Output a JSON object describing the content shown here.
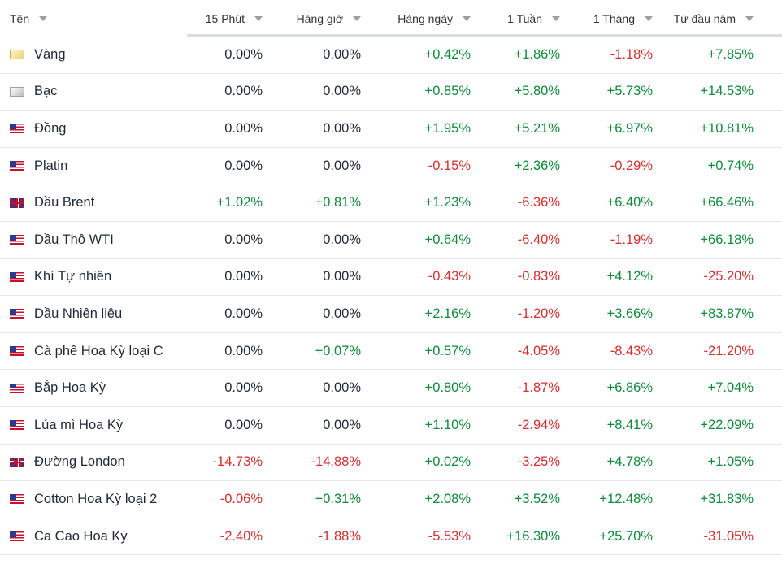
{
  "header": {
    "name": "Tên",
    "cols": [
      "15 Phút",
      "Hàng giờ",
      "Hàng ngày",
      "1 Tuần",
      "1 Tháng",
      "Từ đầu năm"
    ]
  },
  "colors": {
    "positive": "#0f8a3a",
    "negative": "#d32f2f",
    "neutral": "#1f2937"
  },
  "rows": [
    {
      "name": "Vàng",
      "icon": "gold-icon",
      "values": [
        "0.00%",
        "0.00%",
        "+0.42%",
        "+1.86%",
        "-1.18%",
        "+7.85%"
      ]
    },
    {
      "name": "Bạc",
      "icon": "silver-icon",
      "values": [
        "0.00%",
        "0.00%",
        "+0.85%",
        "+5.80%",
        "+5.73%",
        "+14.53%"
      ]
    },
    {
      "name": "Đồng",
      "icon": "us-flag-icon",
      "values": [
        "0.00%",
        "0.00%",
        "+1.95%",
        "+5.21%",
        "+6.97%",
        "+10.81%"
      ]
    },
    {
      "name": "Platin",
      "icon": "us-flag-icon",
      "values": [
        "0.00%",
        "0.00%",
        "-0.15%",
        "+2.36%",
        "-0.29%",
        "+0.74%"
      ]
    },
    {
      "name": "Dầu Brent",
      "icon": "uk-flag-icon",
      "values": [
        "+1.02%",
        "+0.81%",
        "+1.23%",
        "-6.36%",
        "+6.40%",
        "+66.46%"
      ]
    },
    {
      "name": "Dầu Thô WTI",
      "icon": "us-flag-icon",
      "values": [
        "0.00%",
        "0.00%",
        "+0.64%",
        "-6.40%",
        "-1.19%",
        "+66.18%"
      ]
    },
    {
      "name": "Khí Tự nhiên",
      "icon": "us-flag-icon",
      "values": [
        "0.00%",
        "0.00%",
        "-0.43%",
        "-0.83%",
        "+4.12%",
        "-25.20%"
      ]
    },
    {
      "name": "Dầu Nhiên liệu",
      "icon": "us-flag-icon",
      "values": [
        "0.00%",
        "0.00%",
        "+2.16%",
        "-1.20%",
        "+3.66%",
        "+83.87%"
      ]
    },
    {
      "name": "Cà phê Hoa Kỳ loại C",
      "icon": "us-flag-icon",
      "values": [
        "0.00%",
        "+0.07%",
        "+0.57%",
        "-4.05%",
        "-8.43%",
        "-21.20%"
      ]
    },
    {
      "name": "Bắp Hoa Kỳ",
      "icon": "us-flag-icon",
      "values": [
        "0.00%",
        "0.00%",
        "+0.80%",
        "-1.87%",
        "+6.86%",
        "+7.04%"
      ]
    },
    {
      "name": "Lúa mì Hoa Kỳ",
      "icon": "us-flag-icon",
      "values": [
        "0.00%",
        "0.00%",
        "+1.10%",
        "-2.94%",
        "+8.41%",
        "+22.09%"
      ]
    },
    {
      "name": "Đường London",
      "icon": "uk-flag-icon",
      "values": [
        "-14.73%",
        "-14.88%",
        "+0.02%",
        "-3.25%",
        "+4.78%",
        "+1.05%"
      ]
    },
    {
      "name": "Cotton Hoa Kỳ loại 2",
      "icon": "us-flag-icon",
      "values": [
        "-0.06%",
        "+0.31%",
        "+2.08%",
        "+3.52%",
        "+12.48%",
        "+31.83%"
      ]
    },
    {
      "name": "Ca Cao Hoa Kỳ",
      "icon": "us-flag-icon",
      "values": [
        "-2.40%",
        "-1.88%",
        "-5.53%",
        "+16.30%",
        "+25.70%",
        "-31.05%"
      ]
    }
  ]
}
